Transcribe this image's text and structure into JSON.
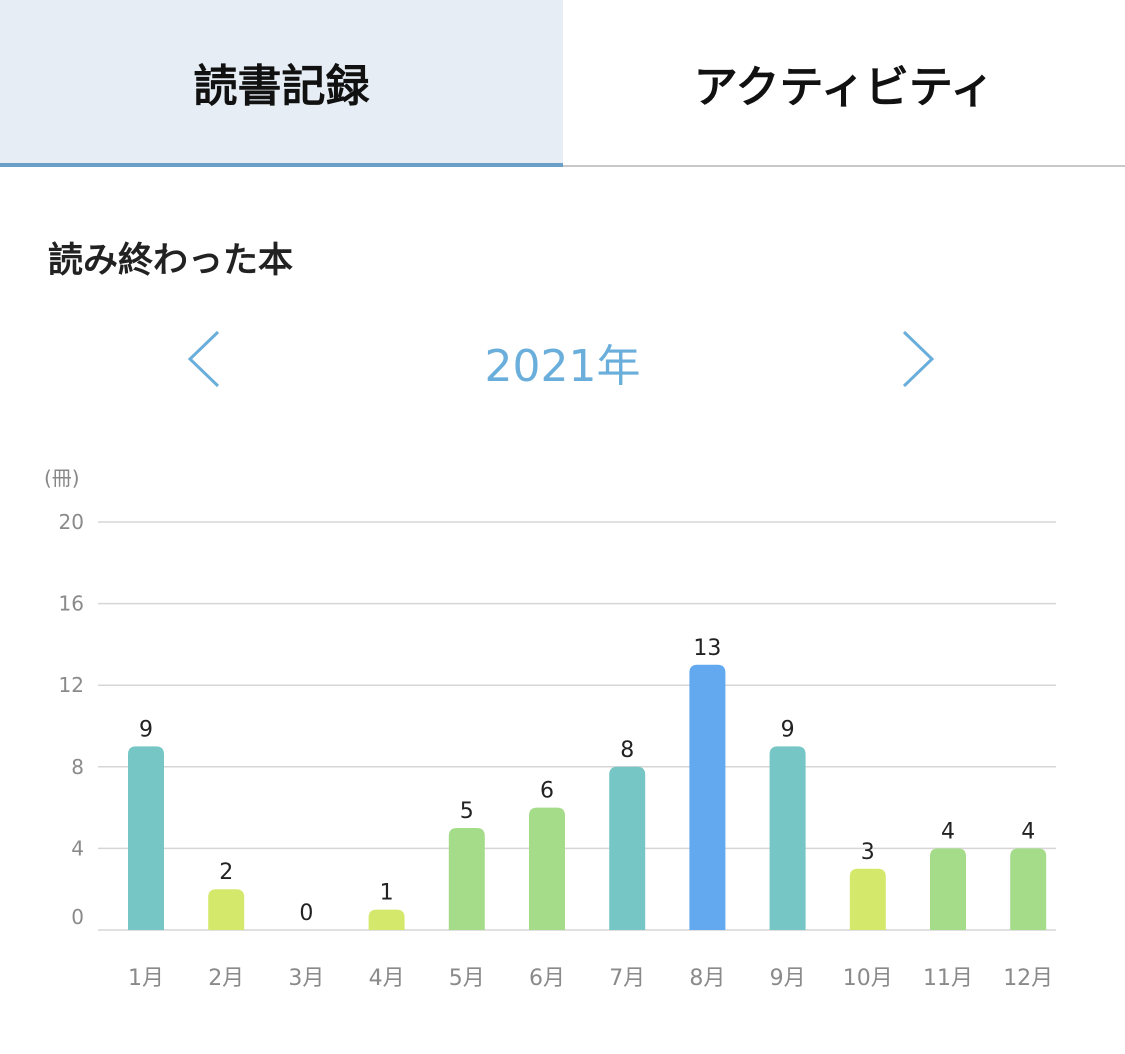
{
  "tabs": [
    {
      "label": "読書記録",
      "active": true
    },
    {
      "label": "アクティビティ",
      "active": false
    }
  ],
  "section": {
    "title": "読み終わった本"
  },
  "year_nav": {
    "year": "2021年",
    "prev_icon": "chevron-left-icon",
    "next_icon": "chevron-right-icon"
  },
  "colors": {
    "accent": "#6aaedb",
    "tab_active_bg": "#e6edf4",
    "tab_underline": "#6a9fc8"
  },
  "chart_data": {
    "type": "bar",
    "ylabel": "(冊)",
    "ylim": [
      0,
      20
    ],
    "yticks": [
      0,
      4,
      8,
      12,
      16,
      20
    ],
    "grid": true,
    "categories": [
      "1月",
      "2月",
      "3月",
      "4月",
      "5月",
      "6月",
      "7月",
      "8月",
      "9月",
      "10月",
      "11月",
      "12月"
    ],
    "values": [
      9,
      2,
      0,
      1,
      5,
      6,
      8,
      13,
      9,
      3,
      4,
      4
    ],
    "bar_colors": [
      "#76c6c6",
      "#d4e96c",
      "#d4e96c",
      "#d4e96c",
      "#a5dc8a",
      "#a5dc8a",
      "#76c6c6",
      "#62a9ef",
      "#76c6c6",
      "#d4e96c",
      "#a5dc8a",
      "#a5dc8a"
    ]
  }
}
